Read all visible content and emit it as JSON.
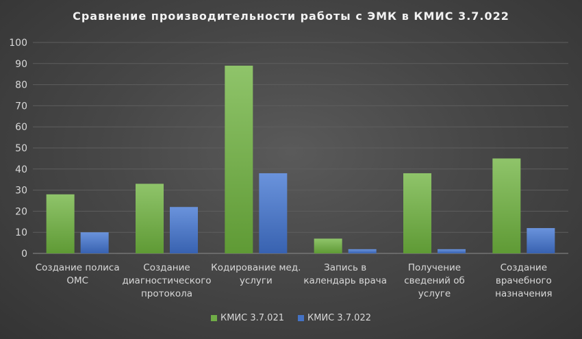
{
  "chart_data": {
    "type": "bar",
    "title": "Сравнение производительности работы с ЭМК в КМИС 3.7.022",
    "xlabel": "",
    "ylabel": "",
    "ylim": [
      0,
      100
    ],
    "yticks": [
      0,
      10,
      20,
      30,
      40,
      50,
      60,
      70,
      80,
      90,
      100
    ],
    "grid": true,
    "legend_position": "bottom",
    "categories": [
      [
        "Создание полиса",
        "ОМС"
      ],
      [
        "Создание",
        "диагностического",
        "протокола"
      ],
      [
        "Кодирование мед.",
        "услуги"
      ],
      [
        "Запись в",
        "календарь врача"
      ],
      [
        "Получение",
        "сведений об",
        "услуге"
      ],
      [
        "Создание",
        "врачебного",
        "назначения"
      ]
    ],
    "series": [
      {
        "name": "КМИС 3.7.021",
        "color": "#70ad47",
        "values": [
          28,
          33,
          89,
          7,
          38,
          45
        ]
      },
      {
        "name": "КМИС 3.7.022",
        "color": "#4472c4",
        "values": [
          10,
          22,
          38,
          2,
          2,
          12
        ]
      }
    ]
  }
}
